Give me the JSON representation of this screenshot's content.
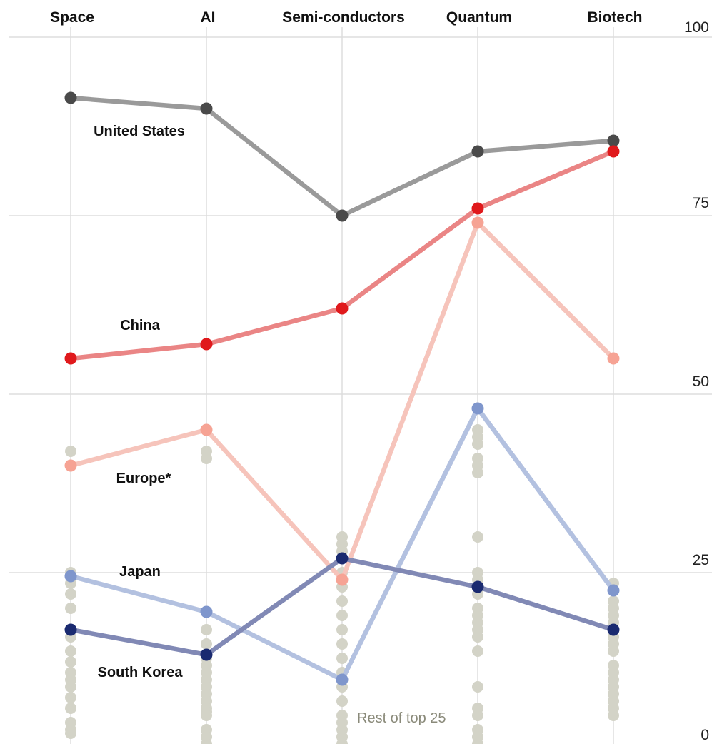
{
  "chart_data": {
    "type": "line",
    "categories": [
      "Space",
      "AI",
      "Semi-conductors",
      "Quantum",
      "Biotech"
    ],
    "ylim": [
      0,
      100
    ],
    "yticks": [
      "100",
      "75",
      "50",
      "25",
      "0"
    ],
    "grid": true,
    "series": [
      {
        "name": "United States",
        "values": [
          91.5,
          90,
          75,
          84,
          85.5
        ],
        "line_color": "#9a9a9a",
        "point_color": "#4a4a4a"
      },
      {
        "name": "China",
        "values": [
          55,
          57,
          62,
          76,
          84
        ],
        "line_color": "#ea8585",
        "point_color": "#e0191c"
      },
      {
        "name": "Europe*",
        "values": [
          40,
          45,
          24,
          74,
          55
        ],
        "line_color": "#f6c4bb",
        "point_color": "#f6a394"
      },
      {
        "name": "Japan",
        "values": [
          24.5,
          19.5,
          10,
          48,
          22.5
        ],
        "line_color": "#b3c1e0",
        "point_color": "#7f96cc"
      },
      {
        "name": "South Korea",
        "values": [
          17,
          13.5,
          27,
          23,
          17
        ],
        "line_color": "#8189b5",
        "point_color": "#1a2a70"
      }
    ],
    "rest": {
      "label": "Rest of top 25",
      "color": "#d3d3c7",
      "values": [
        [
          42,
          40,
          25,
          23.5,
          22,
          20,
          17,
          16,
          14,
          12.5,
          11,
          10,
          9,
          7.5,
          6,
          4,
          3,
          2.5
        ],
        [
          42,
          41,
          17,
          15,
          13,
          12,
          11,
          10,
          9,
          8,
          7,
          6,
          5.5,
          5,
          3,
          2,
          1,
          0.5
        ],
        [
          30,
          29,
          28,
          25,
          23,
          21,
          19,
          17,
          15,
          13,
          11,
          10,
          9,
          7,
          5,
          4,
          3,
          2,
          1,
          0.5
        ],
        [
          45,
          44,
          43,
          41,
          40,
          39,
          30,
          25,
          24,
          22,
          20,
          19,
          18,
          17,
          16,
          14,
          9,
          6,
          5,
          3,
          2,
          1,
          0.5
        ],
        [
          23.5,
          21,
          20,
          19,
          18,
          17,
          16,
          15,
          14,
          12,
          11,
          10,
          9,
          8,
          7,
          6,
          5
        ]
      ]
    }
  }
}
